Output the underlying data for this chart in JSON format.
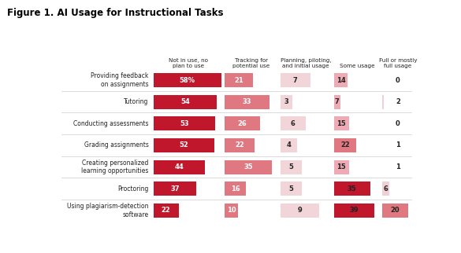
{
  "title": "Figure 1. AI Usage for Instructional Tasks",
  "categories": [
    "Providing feedback\non assignments",
    "Tutoring",
    "Conducting assessments",
    "Grading assignments",
    "Creating personalized\nlearning opportunities",
    "Proctoring",
    "Using plagiarism-detection\nsoftware"
  ],
  "columns": [
    "Not in use, no\nplan to use",
    "Tracking for\npotential use",
    "Planning, piloting,\nand initial usage",
    "Some usage",
    "Full or mostly\nfull usage"
  ],
  "values": [
    [
      58,
      21,
      7,
      14,
      0
    ],
    [
      54,
      33,
      3,
      7,
      2
    ],
    [
      53,
      26,
      6,
      15,
      0
    ],
    [
      52,
      22,
      4,
      22,
      1
    ],
    [
      44,
      35,
      5,
      15,
      1
    ],
    [
      37,
      16,
      5,
      35,
      6
    ],
    [
      22,
      10,
      9,
      39,
      20
    ]
  ],
  "col_max_vals": [
    60,
    40,
    15,
    45,
    25
  ],
  "col_colors": [
    [
      "#c0172d",
      "#e8737f"
    ],
    [
      "#e8737f",
      "#f0b0b8"
    ],
    [
      "#f5d5d8",
      "#f5d5d8"
    ],
    [
      "#e8737f",
      "#c0172d"
    ],
    [
      "#f5d5d8",
      "#e8a0aa"
    ]
  ],
  "label_first_col": [
    "58%",
    "54",
    "53",
    "52",
    "44",
    "37",
    "22"
  ],
  "background_color": "#ffffff",
  "col_text_colors": [
    "white",
    "white",
    "#333333",
    "#333333",
    "#333333"
  ],
  "bar_base_colors": [
    "#c0172d",
    "#e07080",
    "#f0d0d3",
    "#e890a0",
    "#f0d0d5"
  ]
}
